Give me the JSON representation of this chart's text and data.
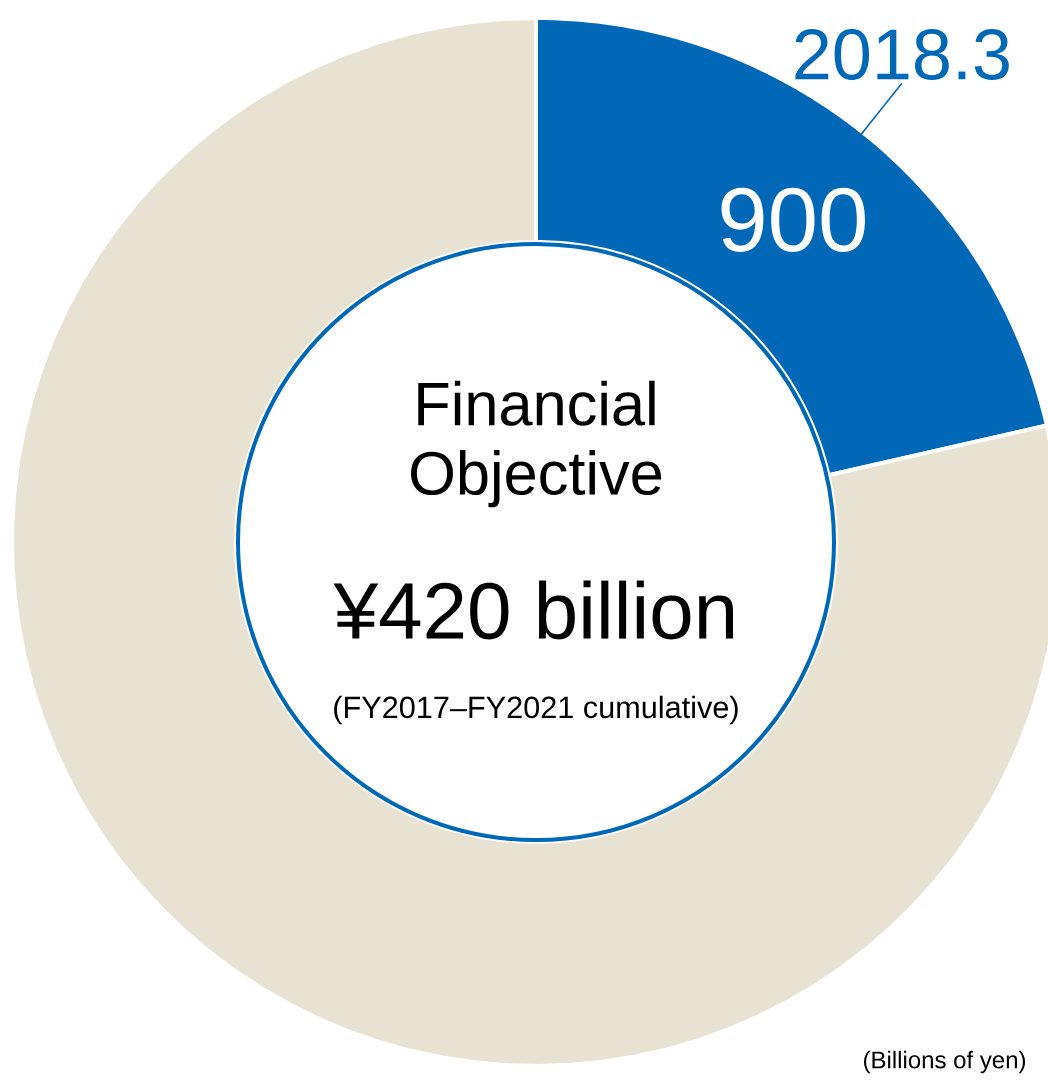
{
  "chart_data": {
    "type": "donut",
    "categories": [
      "2018.3",
      null
    ],
    "values": [
      900,
      3300
    ],
    "colors": [
      "#0068b7",
      "#e8e2d2"
    ],
    "value_labels": [
      "900",
      null
    ],
    "annotations": [
      "Financial Objective",
      "¥420 billion",
      "(FY2017–FY2021 cumulative)",
      "(Billions of yen)"
    ]
  }
}
